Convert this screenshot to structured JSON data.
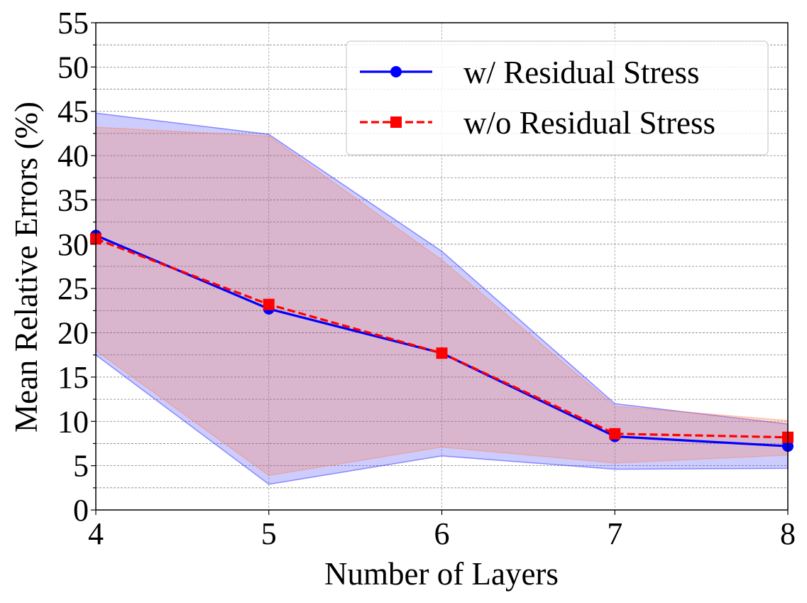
{
  "chart_data": {
    "type": "line",
    "xlabel": "Number of Layers",
    "ylabel": "Mean Relative Errors (%)",
    "x": [
      4,
      5,
      6,
      7,
      8
    ],
    "xlim": [
      4,
      8
    ],
    "ylim": [
      0,
      55
    ],
    "xticks": [
      "4",
      "5",
      "6",
      "7",
      "8"
    ],
    "yticks": [
      "0",
      "5",
      "10",
      "15",
      "20",
      "25",
      "30",
      "35",
      "40",
      "45",
      "50",
      "55"
    ],
    "grid": true,
    "legend_position": "top-right",
    "series": [
      {
        "name": "w/ Residual Stress",
        "values": [
          31.0,
          22.7,
          17.7,
          8.3,
          7.2
        ],
        "band_lower": [
          17.5,
          2.9,
          6.1,
          4.6,
          4.7
        ],
        "band_upper": [
          44.8,
          42.4,
          29.2,
          12.0,
          9.7
        ],
        "color": "#0000ff",
        "band_color": "#0000ff",
        "line_style": "solid",
        "marker": "circle"
      },
      {
        "name": "w/o Residual Stress",
        "values": [
          30.6,
          23.2,
          17.7,
          8.6,
          8.2
        ],
        "band_lower": [
          18.0,
          3.9,
          7.1,
          5.3,
          6.2
        ],
        "band_upper": [
          43.2,
          42.2,
          28.2,
          11.7,
          10.1
        ],
        "color": "#ff0000",
        "band_color": "#ff7f50",
        "line_style": "dashed",
        "marker": "square"
      }
    ]
  }
}
